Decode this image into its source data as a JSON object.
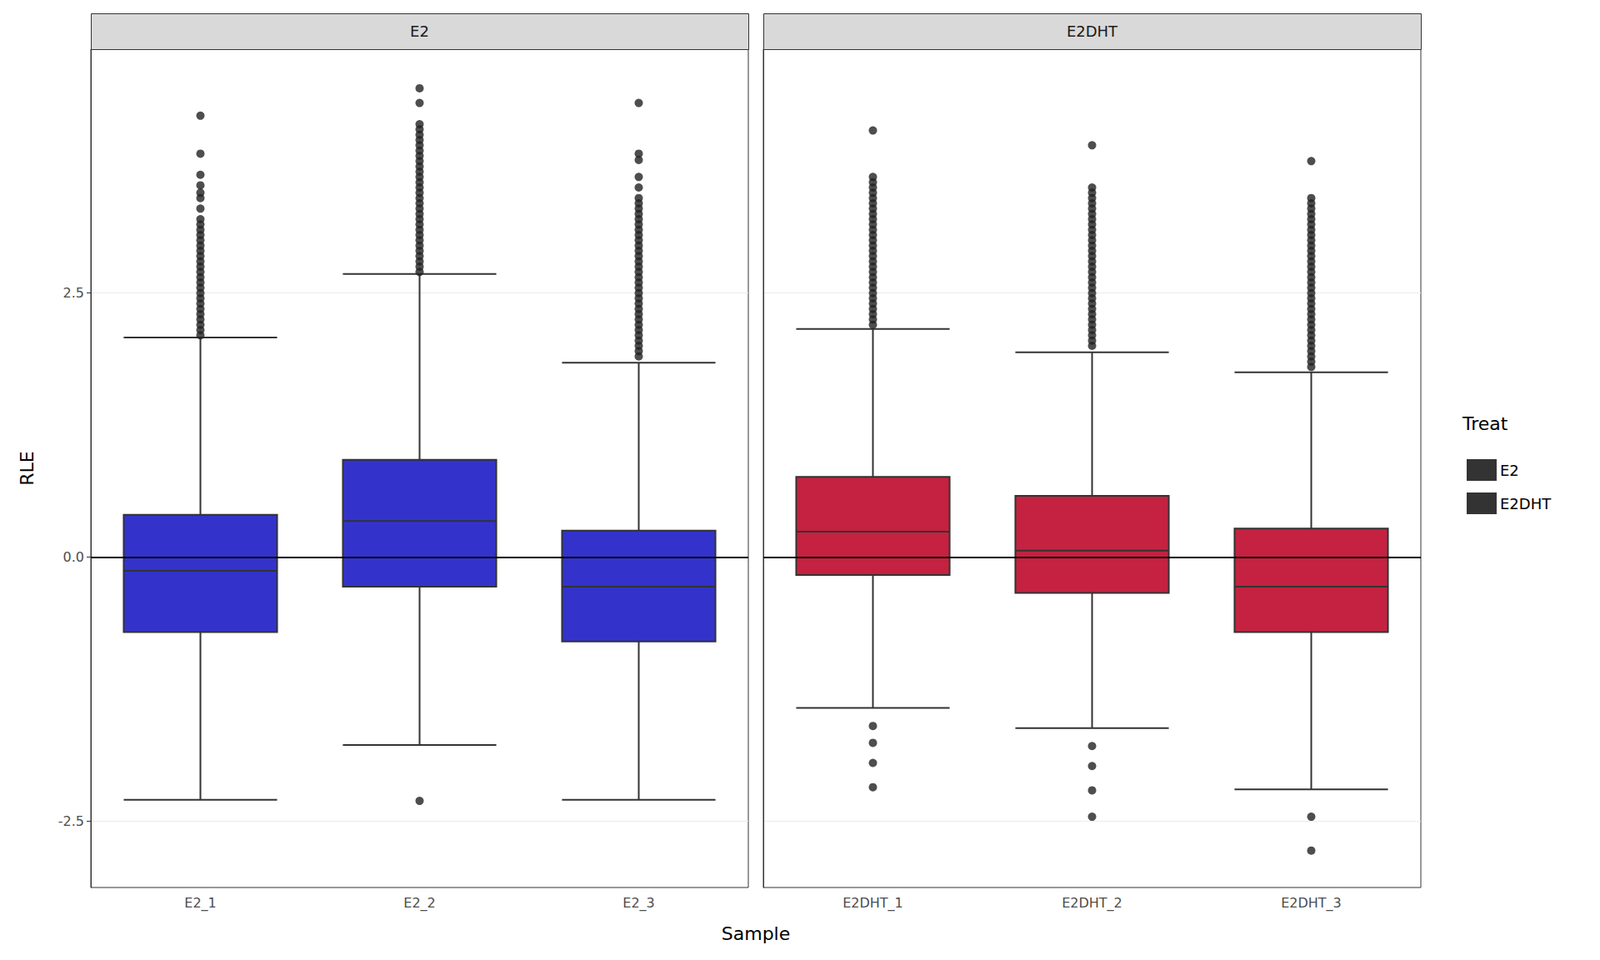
{
  "chart_data": {
    "type": "boxplot",
    "x_label": "Sample",
    "y_label": "RLE",
    "ylim": [
      -3.13,
      4.81
    ],
    "yticks": [
      -2.5,
      {
        "value": 0,
        "label": "0.0"
      },
      2.5
    ],
    "grid": true,
    "reference_line": 0,
    "legend_title": "Treat",
    "legend": "right",
    "tick_labels": "y",
    "panels": [
      {
        "title": "E2",
        "name": "E2",
        "color": "#3333cc",
        "categories": [
          "E2_1",
          "E2_2",
          "E2_3"
        ],
        "boxes": [
          [
            -2.3,
            -0.71,
            -0.13,
            0.4,
            2.08
          ],
          [
            -1.78,
            -0.28,
            0.34,
            0.92,
            2.68
          ],
          [
            -2.3,
            -0.8,
            -0.28,
            0.25,
            1.84
          ]
        ],
        "outliers": [
          [
            2.1,
            2.15,
            2.2,
            2.25,
            2.3,
            2.35,
            2.4,
            2.45,
            2.5,
            2.55,
            2.6,
            2.65,
            2.7,
            2.75,
            2.8,
            2.85,
            2.9,
            2.95,
            3.0,
            3.05,
            3.1,
            3.15,
            3.2,
            3.3,
            3.4,
            3.45,
            3.52,
            3.62,
            3.82,
            4.18
          ],
          [
            -2.31,
            2.7,
            2.75,
            2.8,
            2.85,
            2.9,
            2.95,
            3.0,
            3.05,
            3.1,
            3.15,
            3.2,
            3.25,
            3.3,
            3.35,
            3.4,
            3.45,
            3.5,
            3.55,
            3.6,
            3.65,
            3.7,
            3.75,
            3.8,
            3.85,
            3.9,
            3.95,
            4.0,
            4.05,
            4.1,
            4.3,
            4.44
          ],
          [
            1.9,
            1.95,
            2.0,
            2.05,
            2.1,
            2.15,
            2.2,
            2.25,
            2.3,
            2.35,
            2.4,
            2.45,
            2.5,
            2.55,
            2.6,
            2.65,
            2.7,
            2.75,
            2.8,
            2.85,
            2.9,
            2.95,
            3.0,
            3.05,
            3.1,
            3.15,
            3.2,
            3.25,
            3.3,
            3.35,
            3.4,
            3.5,
            3.6,
            3.76,
            3.82,
            4.3
          ]
        ]
      },
      {
        "title": "E2DHT",
        "name": "E2DHT",
        "color": "#c42240",
        "categories": [
          "E2DHT_1",
          "E2DHT_2",
          "E2DHT_3"
        ],
        "boxes": [
          [
            -1.43,
            -0.17,
            0.24,
            0.76,
            2.16
          ],
          [
            -1.62,
            -0.34,
            0.06,
            0.58,
            1.94
          ],
          [
            -2.2,
            -0.71,
            -0.28,
            0.27,
            1.75
          ]
        ],
        "outliers": [
          [
            -1.6,
            -1.76,
            -1.95,
            -2.18,
            2.2,
            2.25,
            2.3,
            2.35,
            2.4,
            2.45,
            2.5,
            2.55,
            2.6,
            2.65,
            2.7,
            2.75,
            2.8,
            2.85,
            2.9,
            2.95,
            3.0,
            3.05,
            3.1,
            3.15,
            3.2,
            3.25,
            3.3,
            3.35,
            3.4,
            3.45,
            3.5,
            3.55,
            3.6,
            4.04
          ],
          [
            -1.79,
            -1.98,
            -2.21,
            -2.46,
            2.0,
            2.05,
            2.1,
            2.15,
            2.2,
            2.25,
            2.3,
            2.35,
            2.4,
            2.45,
            2.5,
            2.55,
            2.6,
            2.65,
            2.7,
            2.75,
            2.8,
            2.85,
            2.9,
            2.95,
            3.0,
            3.05,
            3.1,
            3.15,
            3.2,
            3.25,
            3.3,
            3.35,
            3.4,
            3.45,
            3.5,
            3.9
          ],
          [
            -2.46,
            -2.78,
            1.8,
            1.85,
            1.9,
            1.95,
            2.0,
            2.05,
            2.1,
            2.15,
            2.2,
            2.25,
            2.3,
            2.35,
            2.4,
            2.45,
            2.5,
            2.55,
            2.6,
            2.65,
            2.7,
            2.75,
            2.8,
            2.85,
            2.9,
            2.95,
            3.0,
            3.05,
            3.1,
            3.15,
            3.2,
            3.25,
            3.3,
            3.35,
            3.4,
            3.75
          ]
        ]
      }
    ]
  }
}
